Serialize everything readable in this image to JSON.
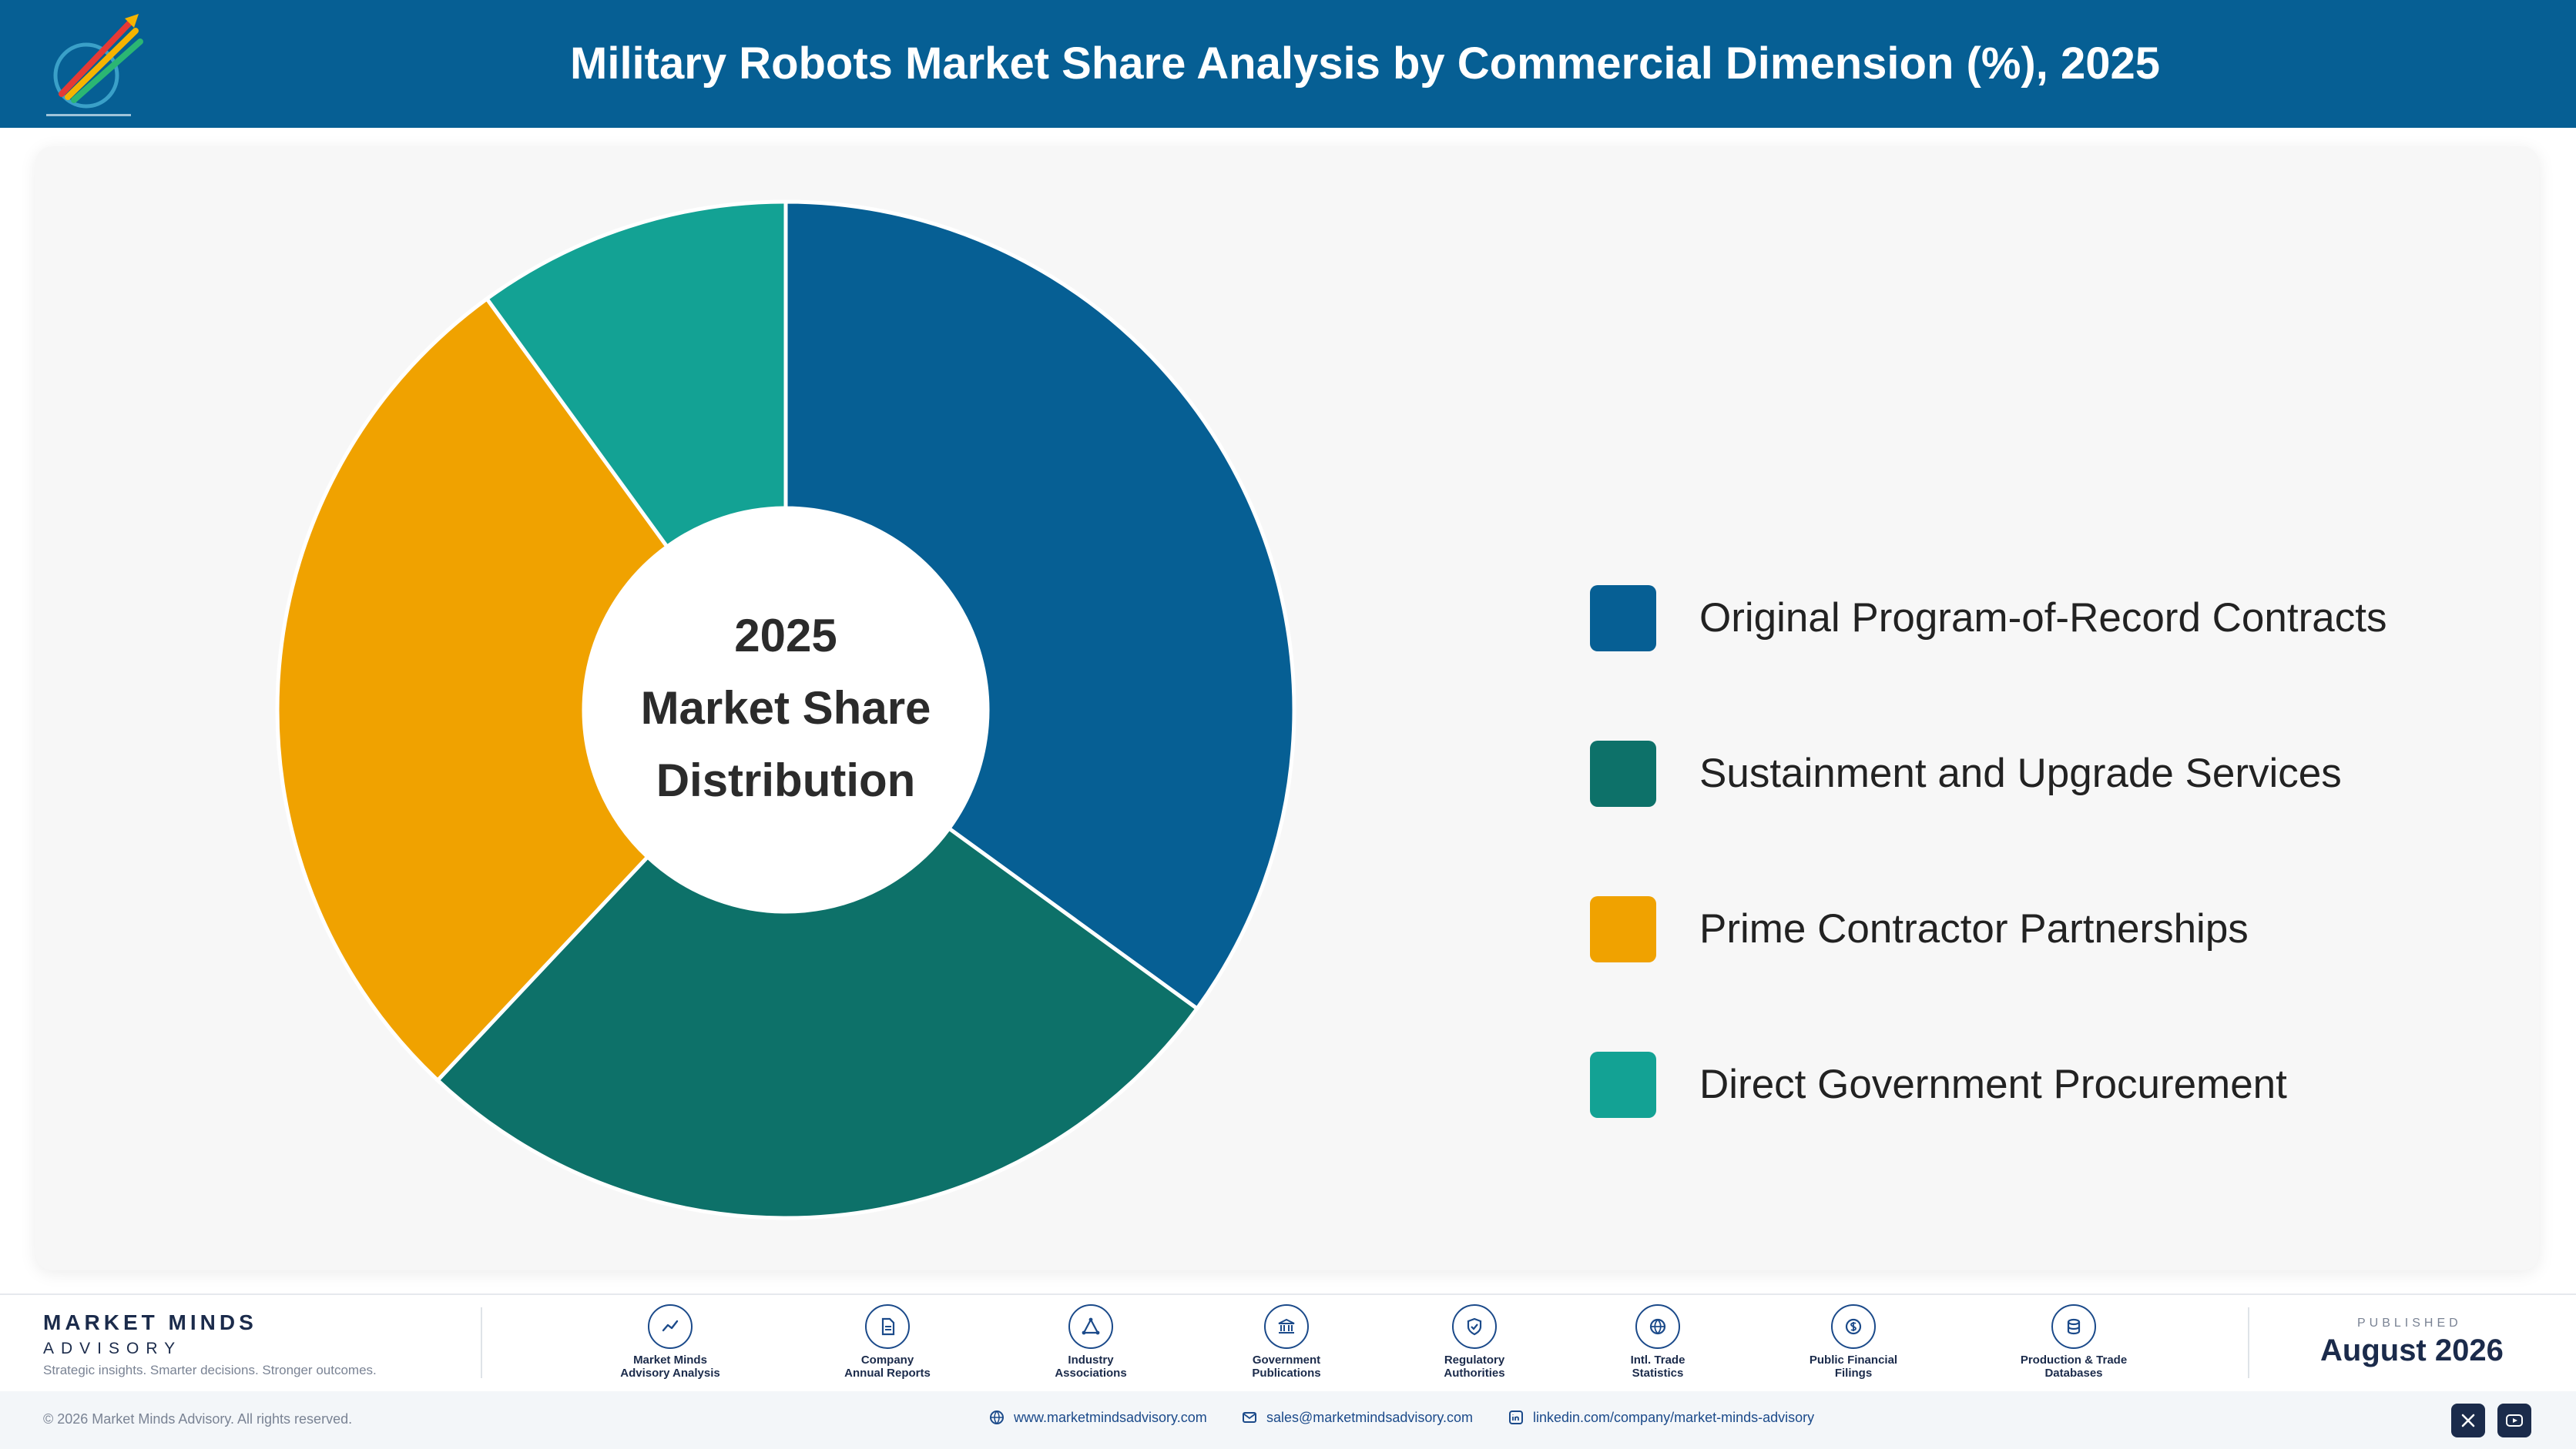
{
  "header": {
    "title": "Military Robots Market Share Analysis by Commercial Dimension (%), 2025"
  },
  "chart_data": {
    "type": "pie",
    "style": "donut",
    "center_label": [
      "2025",
      "Market Share",
      "Distribution"
    ],
    "categories": [
      "Original Program-of-Record Contracts",
      "Sustainment and Upgrade Services",
      "Prime Contractor Partnerships",
      "Direct Government Procurement"
    ],
    "values": [
      35.0,
      27.0,
      28.0,
      10.0
    ],
    "colors": [
      "#065f94",
      "#0d7169",
      "#f0a200",
      "#13a294"
    ],
    "legend_position": "right"
  },
  "footer": {
    "brand_name": "MARKET MINDS",
    "brand_sub": "ADVISORY",
    "tagline": "Strategic insights. Smarter decisions. Stronger outcomes.",
    "sources": [
      {
        "icon": "trend-chart-icon",
        "line1": "Market Minds",
        "line2": "Advisory Analysis"
      },
      {
        "icon": "document-icon",
        "line1": "Company",
        "line2": "Annual Reports"
      },
      {
        "icon": "network-icon",
        "line1": "Industry",
        "line2": "Associations"
      },
      {
        "icon": "government-building-icon",
        "line1": "Government",
        "line2": "Publications"
      },
      {
        "icon": "shield-check-icon",
        "line1": "Regulatory",
        "line2": "Authorities"
      },
      {
        "icon": "globe-icon",
        "line1": "Intl. Trade",
        "line2": "Statistics"
      },
      {
        "icon": "dollar-coin-icon",
        "line1": "Public Financial",
        "line2": "Filings"
      },
      {
        "icon": "database-icon",
        "line1": "Production & Trade",
        "line2": "Databases"
      }
    ],
    "published_label": "PUBLISHED",
    "published_date": "August 2026",
    "copyright": "© 2026 Market Minds Advisory. All rights reserved.",
    "website": "www.marketmindsadvisory.com",
    "email": "sales@marketmindsadvisory.com",
    "linkedin": "linkedin.com/company/market-minds-advisory"
  }
}
